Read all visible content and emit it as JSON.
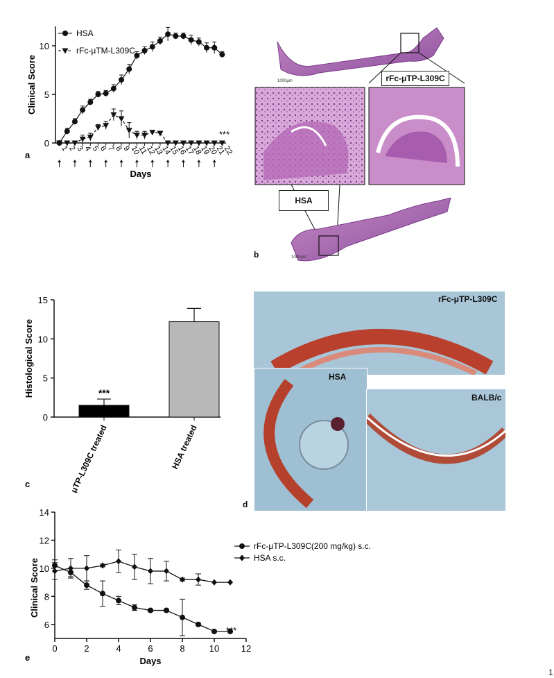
{
  "chart_data": [
    {
      "id": "a",
      "type": "line",
      "panel_label": "a",
      "xlabel": "Days",
      "ylabel": "Clinical Score",
      "categories": [
        "1",
        "2",
        "3",
        "4",
        "5",
        "6",
        "7",
        "8",
        "9",
        "10",
        "11",
        "12",
        "13",
        "14",
        "15",
        "16",
        "17",
        "18",
        "19",
        "20",
        "21",
        "22"
      ],
      "x": [
        1,
        2,
        3,
        4,
        5,
        6,
        7,
        8,
        9,
        10,
        11,
        12,
        13,
        14,
        15,
        16,
        17,
        18,
        19,
        20,
        21,
        22
      ],
      "series": [
        {
          "name": "HSA",
          "values": [
            0.0,
            1.2,
            2.2,
            3.4,
            4.2,
            5.0,
            5.1,
            5.6,
            6.5,
            7.6,
            9.0,
            9.5,
            9.9,
            10.5,
            11.2,
            11.0,
            11.0,
            10.6,
            10.4,
            9.8,
            9.8,
            9.1
          ],
          "errors": [
            0,
            0.3,
            0.3,
            0.4,
            0.3,
            0.3,
            0.3,
            0.4,
            0.5,
            0.5,
            0.4,
            0.4,
            0.5,
            0.4,
            0.7,
            0.3,
            0.3,
            0.5,
            0.4,
            0.5,
            0.6,
            0.3
          ],
          "marker": "circle"
        },
        {
          "name": "rFc-μTM-L309C",
          "values": [
            0,
            0,
            0,
            0.4,
            0.6,
            1.6,
            1.8,
            2.9,
            2.5,
            1.3,
            0.8,
            0.8,
            1.1,
            1.0,
            0,
            0,
            0,
            0,
            0,
            0,
            0,
            0
          ],
          "errors": [
            0,
            0,
            0,
            0.4,
            0.4,
            0.3,
            0.4,
            0.6,
            0.8,
            0.8,
            0.4,
            0.4,
            0.2,
            0.2,
            0,
            0,
            0,
            0,
            0,
            0,
            0,
            0
          ],
          "marker": "triangle-down"
        }
      ],
      "yticks": [
        0,
        5,
        10
      ],
      "ylim": [
        0,
        12
      ],
      "xlim": [
        0.5,
        22.5
      ],
      "annotation": "***",
      "grid": false,
      "legend_position": "top-left"
    },
    {
      "id": "c",
      "type": "bar",
      "panel_label": "c",
      "ylabel": "Histological Score",
      "categories": [
        "rFc-μTP-L309C treated",
        "HSA treated"
      ],
      "values": [
        1.5,
        12.2
      ],
      "errors": [
        0.8,
        1.7
      ],
      "colors": [
        "#000000",
        "#b8b8b8"
      ],
      "yticks": [
        0,
        5,
        10,
        15
      ],
      "ylim": [
        0,
        15
      ],
      "annotation": "***",
      "grid": false
    },
    {
      "id": "e",
      "type": "line",
      "panel_label": "e",
      "xlabel": "Days",
      "ylabel": "Clinical Score",
      "x": [
        0,
        1,
        2,
        3,
        4,
        5,
        6,
        7,
        8,
        9,
        10,
        11
      ],
      "xticks": [
        0,
        2,
        4,
        6,
        8,
        10,
        12
      ],
      "yticks": [
        6,
        8,
        10,
        12,
        14
      ],
      "ylim": [
        5,
        14
      ],
      "xlim": [
        0,
        12
      ],
      "series": [
        {
          "name": "rFc-μTP-L309C(200 mg/kg) s.c.",
          "values": [
            10.2,
            9.7,
            8.8,
            8.2,
            7.7,
            7.2,
            7.0,
            7.0,
            6.5,
            6.0,
            5.5,
            5.5
          ],
          "errors": [
            0.4,
            0.3,
            0.3,
            0.9,
            0.3,
            0.2,
            0.1,
            0.1,
            1.3,
            0.1,
            0.05,
            0.05
          ],
          "marker": "circle"
        },
        {
          "name": "HSA s.c.",
          "values": [
            9.8,
            10.0,
            10.0,
            10.2,
            10.5,
            10.1,
            9.8,
            9.8,
            9.2,
            9.2,
            9.0,
            9.0
          ],
          "errors": [
            0.6,
            0.7,
            0.9,
            0.1,
            0.8,
            0.9,
            0.9,
            0.7,
            0.1,
            0.4,
            0.05,
            0.05
          ],
          "marker": "diamond"
        }
      ],
      "annotation": "***",
      "grid": false,
      "legend_position": "right"
    }
  ],
  "panel_b": {
    "label": "b",
    "box_top": "rFc-μTP-L309C",
    "box_bottom": "HSA",
    "scale_top": "1000μm",
    "scale_bottom": "1000μm"
  },
  "panel_d": {
    "label": "d",
    "label_top": "rFc-μTP-L309C",
    "label_left": "HSA",
    "label_right": "BALB/c"
  },
  "page_number": "1"
}
